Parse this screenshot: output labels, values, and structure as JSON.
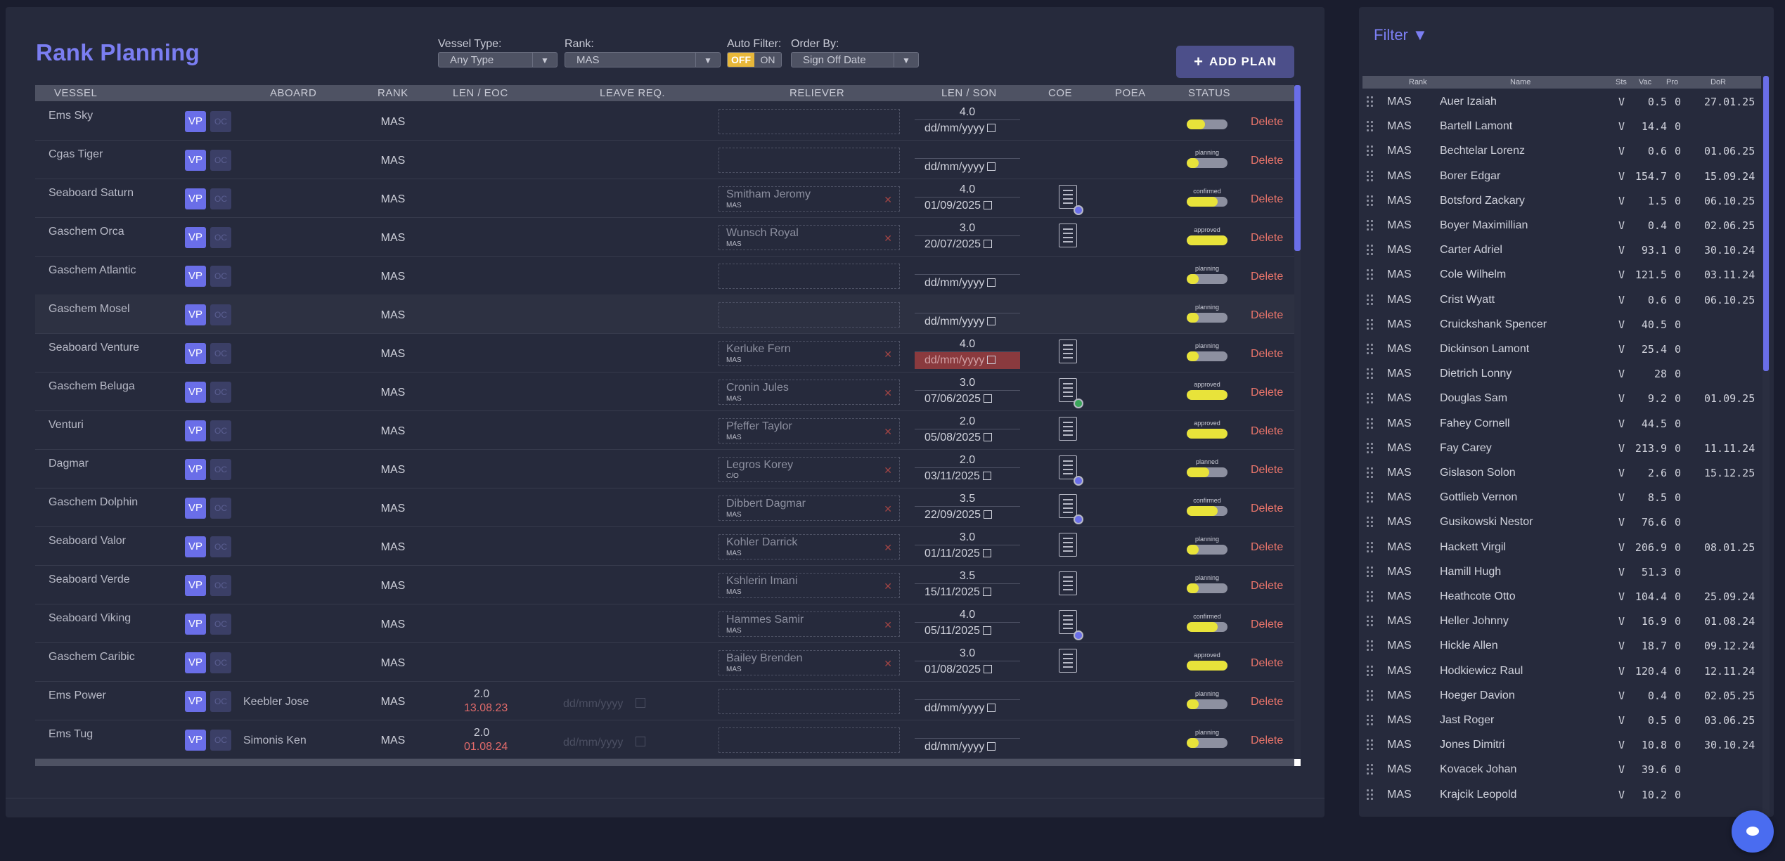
{
  "title": "Rank Planning",
  "filters": {
    "vessel_type_label": "Vessel Type:",
    "vessel_type_value": "Any Type",
    "rank_label": "Rank:",
    "rank_value": "MAS",
    "auto_filter_label": "Auto Filter:",
    "auto_off": "OFF",
    "auto_on": "ON",
    "order_by_label": "Order By:",
    "order_by_value": "Sign Off Date"
  },
  "add_plan": "ADD PLAN",
  "table": {
    "headers": {
      "vessel": "VESSEL",
      "aboard": "ABOARD",
      "rank": "RANK",
      "len_eoc": "LEN / EOC",
      "leave_req": "LEAVE REQ.",
      "reliever": "RELIEVER",
      "len_son": "LEN / SON",
      "coe": "COE",
      "poea": "POEA",
      "status": "STATUS"
    },
    "vp_label": "VP",
    "oc_label": "OC",
    "delete_label": "Delete",
    "date_placeholder": "dd/mm/yyyy",
    "rows": [
      {
        "vessel": "Ems Sky",
        "aboard": "",
        "rank": "MAS",
        "len": "",
        "eoc": "",
        "leave": false,
        "rel_name": "",
        "rel_rank": "",
        "son_len": "4.0",
        "son_date": "dd/mm/yyyy",
        "son_red": false,
        "coe": false,
        "coe_dot": "",
        "status": "",
        "status_fill": 0.45
      },
      {
        "vessel": "Cgas Tiger",
        "aboard": "",
        "rank": "MAS",
        "len": "",
        "eoc": "",
        "leave": false,
        "rel_name": "",
        "rel_rank": "",
        "son_len": "",
        "son_date": "dd/mm/yyyy",
        "son_red": false,
        "coe": false,
        "coe_dot": "",
        "status": "planning",
        "status_fill": 0.3
      },
      {
        "vessel": "Seaboard Saturn",
        "aboard": "",
        "rank": "MAS",
        "len": "",
        "eoc": "",
        "leave": false,
        "rel_name": "Smitham Jeromy",
        "rel_rank": "MAS",
        "son_len": "4.0",
        "son_date": "01/09/2025",
        "son_red": false,
        "coe": true,
        "coe_dot": "#6a6ee8",
        "status": "confirmed",
        "status_fill": 0.75
      },
      {
        "vessel": "Gaschem Orca",
        "aboard": "",
        "rank": "MAS",
        "len": "",
        "eoc": "",
        "leave": false,
        "rel_name": "Wunsch Royal",
        "rel_rank": "MAS",
        "son_len": "3.0",
        "son_date": "20/07/2025",
        "son_red": false,
        "coe": true,
        "coe_dot": "",
        "status": "approved",
        "status_fill": 1.0
      },
      {
        "vessel": "Gaschem Atlantic",
        "aboard": "",
        "rank": "MAS",
        "len": "",
        "eoc": "",
        "leave": false,
        "rel_name": "",
        "rel_rank": "",
        "son_len": "",
        "son_date": "dd/mm/yyyy",
        "son_red": false,
        "coe": false,
        "coe_dot": "",
        "status": "planning",
        "status_fill": 0.3
      },
      {
        "vessel": "Gaschem Mosel",
        "aboard": "",
        "rank": "MAS",
        "len": "",
        "eoc": "",
        "leave": false,
        "rel_name": "",
        "rel_rank": "",
        "son_len": "",
        "son_date": "dd/mm/yyyy",
        "son_red": false,
        "coe": false,
        "coe_dot": "",
        "status": "planning",
        "status_fill": 0.3
      },
      {
        "vessel": "Seaboard Venture",
        "aboard": "",
        "rank": "MAS",
        "len": "",
        "eoc": "",
        "leave": false,
        "rel_name": "Kerluke Fern",
        "rel_rank": "MAS",
        "son_len": "4.0",
        "son_date": "dd/mm/yyyy",
        "son_red": true,
        "coe": true,
        "coe_dot": "",
        "status": "planning",
        "status_fill": 0.3
      },
      {
        "vessel": "Gaschem Beluga",
        "aboard": "",
        "rank": "MAS",
        "len": "",
        "eoc": "",
        "leave": false,
        "rel_name": "Cronin Jules",
        "rel_rank": "MAS",
        "son_len": "3.0",
        "son_date": "07/06/2025",
        "son_red": false,
        "coe": true,
        "coe_dot": "#3aa55a",
        "status": "approved",
        "status_fill": 1.0
      },
      {
        "vessel": "Venturi",
        "aboard": "",
        "rank": "MAS",
        "len": "",
        "eoc": "",
        "leave": false,
        "rel_name": "Pfeffer Taylor",
        "rel_rank": "MAS",
        "son_len": "2.0",
        "son_date": "05/08/2025",
        "son_red": false,
        "coe": true,
        "coe_dot": "",
        "status": "approved",
        "status_fill": 1.0
      },
      {
        "vessel": "Dagmar",
        "aboard": "",
        "rank": "MAS",
        "len": "",
        "eoc": "",
        "leave": false,
        "rel_name": "Legros Korey",
        "rel_rank": "C/O",
        "son_len": "2.0",
        "son_date": "03/11/2025",
        "son_red": false,
        "coe": true,
        "coe_dot": "#6a6ee8",
        "status": "planned",
        "status_fill": 0.55
      },
      {
        "vessel": "Gaschem Dolphin",
        "aboard": "",
        "rank": "MAS",
        "len": "",
        "eoc": "",
        "leave": false,
        "rel_name": "Dibbert Dagmar",
        "rel_rank": "MAS",
        "son_len": "3.5",
        "son_date": "22/09/2025",
        "son_red": false,
        "coe": true,
        "coe_dot": "#6a6ee8",
        "status": "confirmed",
        "status_fill": 0.75
      },
      {
        "vessel": "Seaboard Valor",
        "aboard": "",
        "rank": "MAS",
        "len": "",
        "eoc": "",
        "leave": false,
        "rel_name": "Kohler Darrick",
        "rel_rank": "MAS",
        "son_len": "3.0",
        "son_date": "01/11/2025",
        "son_red": false,
        "coe": true,
        "coe_dot": "",
        "status": "planning",
        "status_fill": 0.3
      },
      {
        "vessel": "Seaboard Verde",
        "aboard": "",
        "rank": "MAS",
        "len": "",
        "eoc": "",
        "leave": false,
        "rel_name": "Kshlerin Imani",
        "rel_rank": "MAS",
        "son_len": "3.5",
        "son_date": "15/11/2025",
        "son_red": false,
        "coe": true,
        "coe_dot": "",
        "status": "planning",
        "status_fill": 0.3
      },
      {
        "vessel": "Seaboard Viking",
        "aboard": "",
        "rank": "MAS",
        "len": "",
        "eoc": "",
        "leave": false,
        "rel_name": "Hammes Samir",
        "rel_rank": "MAS",
        "son_len": "4.0",
        "son_date": "05/11/2025",
        "son_red": false,
        "coe": true,
        "coe_dot": "#6a6ee8",
        "status": "confirmed",
        "status_fill": 0.75
      },
      {
        "vessel": "Gaschem Caribic",
        "aboard": "",
        "rank": "MAS",
        "len": "",
        "eoc": "",
        "leave": false,
        "rel_name": "Bailey Brenden",
        "rel_rank": "MAS",
        "son_len": "3.0",
        "son_date": "01/08/2025",
        "son_red": false,
        "coe": true,
        "coe_dot": "",
        "status": "approved",
        "status_fill": 1.0
      },
      {
        "vessel": "Ems Power",
        "aboard": "Keebler Jose",
        "rank": "MAS",
        "len": "2.0",
        "eoc": "13.08.23",
        "leave": true,
        "rel_name": "",
        "rel_rank": "",
        "son_len": "",
        "son_date": "dd/mm/yyyy",
        "son_red": false,
        "coe": false,
        "coe_dot": "",
        "status": "planning",
        "status_fill": 0.3
      },
      {
        "vessel": "Ems Tug",
        "aboard": "Simonis Ken",
        "rank": "MAS",
        "len": "2.0",
        "eoc": "01.08.24",
        "leave": true,
        "rel_name": "",
        "rel_rank": "",
        "son_len": "",
        "son_date": "dd/mm/yyyy",
        "son_red": false,
        "coe": false,
        "coe_dot": "",
        "status": "planning",
        "status_fill": 0.3
      }
    ]
  },
  "side": {
    "filter_label": "Filter ▼",
    "headers": {
      "rank": "Rank",
      "name": "Name",
      "sts": "Sts",
      "vac": "Vac",
      "pro": "Pro",
      "dor": "DoR"
    },
    "rows": [
      {
        "rank": "MAS",
        "name": "Auer Izaiah",
        "sts": "V",
        "vac": "0.5",
        "pro": "0",
        "dor": "27.01.25"
      },
      {
        "rank": "MAS",
        "name": "Bartell Lamont",
        "sts": "V",
        "vac": "14.4",
        "pro": "0",
        "dor": ""
      },
      {
        "rank": "MAS",
        "name": "Bechtelar Lorenz",
        "sts": "V",
        "vac": "0.6",
        "pro": "0",
        "dor": "01.06.25"
      },
      {
        "rank": "MAS",
        "name": "Borer Edgar",
        "sts": "V",
        "vac": "154.7",
        "pro": "0",
        "dor": "15.09.24"
      },
      {
        "rank": "MAS",
        "name": "Botsford Zackary",
        "sts": "V",
        "vac": "1.5",
        "pro": "0",
        "dor": "06.10.25"
      },
      {
        "rank": "MAS",
        "name": "Boyer Maximillian",
        "sts": "V",
        "vac": "0.4",
        "pro": "0",
        "dor": "02.06.25"
      },
      {
        "rank": "MAS",
        "name": "Carter Adriel",
        "sts": "V",
        "vac": "93.1",
        "pro": "0",
        "dor": "30.10.24"
      },
      {
        "rank": "MAS",
        "name": "Cole Wilhelm",
        "sts": "V",
        "vac": "121.5",
        "pro": "0",
        "dor": "03.11.24"
      },
      {
        "rank": "MAS",
        "name": "Crist Wyatt",
        "sts": "V",
        "vac": "0.6",
        "pro": "0",
        "dor": "06.10.25"
      },
      {
        "rank": "MAS",
        "name": "Cruickshank Spencer",
        "sts": "V",
        "vac": "40.5",
        "pro": "0",
        "dor": ""
      },
      {
        "rank": "MAS",
        "name": "Dickinson Lamont",
        "sts": "V",
        "vac": "25.4",
        "pro": "0",
        "dor": ""
      },
      {
        "rank": "MAS",
        "name": "Dietrich Lonny",
        "sts": "V",
        "vac": "28",
        "pro": "0",
        "dor": ""
      },
      {
        "rank": "MAS",
        "name": "Douglas Sam",
        "sts": "V",
        "vac": "9.2",
        "pro": "0",
        "dor": "01.09.25"
      },
      {
        "rank": "MAS",
        "name": "Fahey Cornell",
        "sts": "V",
        "vac": "44.5",
        "pro": "0",
        "dor": ""
      },
      {
        "rank": "MAS",
        "name": "Fay Carey",
        "sts": "V",
        "vac": "213.9",
        "pro": "0",
        "dor": "11.11.24"
      },
      {
        "rank": "MAS",
        "name": "Gislason Solon",
        "sts": "V",
        "vac": "2.6",
        "pro": "0",
        "dor": "15.12.25"
      },
      {
        "rank": "MAS",
        "name": "Gottlieb Vernon",
        "sts": "V",
        "vac": "8.5",
        "pro": "0",
        "dor": ""
      },
      {
        "rank": "MAS",
        "name": "Gusikowski Nestor",
        "sts": "V",
        "vac": "76.6",
        "pro": "0",
        "dor": ""
      },
      {
        "rank": "MAS",
        "name": "Hackett Virgil",
        "sts": "V",
        "vac": "206.9",
        "pro": "0",
        "dor": "08.01.25"
      },
      {
        "rank": "MAS",
        "name": "Hamill Hugh",
        "sts": "V",
        "vac": "51.3",
        "pro": "0",
        "dor": ""
      },
      {
        "rank": "MAS",
        "name": "Heathcote Otto",
        "sts": "V",
        "vac": "104.4",
        "pro": "0",
        "dor": "25.09.24"
      },
      {
        "rank": "MAS",
        "name": "Heller Johnny",
        "sts": "V",
        "vac": "16.9",
        "pro": "0",
        "dor": "01.08.24"
      },
      {
        "rank": "MAS",
        "name": "Hickle Allen",
        "sts": "V",
        "vac": "18.7",
        "pro": "0",
        "dor": "09.12.24"
      },
      {
        "rank": "MAS",
        "name": "Hodkiewicz Raul",
        "sts": "V",
        "vac": "120.4",
        "pro": "0",
        "dor": "12.11.24"
      },
      {
        "rank": "MAS",
        "name": "Hoeger Davion",
        "sts": "V",
        "vac": "0.4",
        "pro": "0",
        "dor": "02.05.25"
      },
      {
        "rank": "MAS",
        "name": "Jast Roger",
        "sts": "V",
        "vac": "0.5",
        "pro": "0",
        "dor": "03.06.25"
      },
      {
        "rank": "MAS",
        "name": "Jones Dimitri",
        "sts": "V",
        "vac": "10.8",
        "pro": "0",
        "dor": "30.10.24"
      },
      {
        "rank": "MAS",
        "name": "Kovacek Johan",
        "sts": "V",
        "vac": "39.6",
        "pro": "0",
        "dor": ""
      },
      {
        "rank": "MAS",
        "name": "Krajcik Leopold",
        "sts": "V",
        "vac": "10.2",
        "pro": "0",
        "dor": ""
      }
    ]
  },
  "colors": {
    "accent": "#7b7ef2",
    "delete": "#e8746a",
    "status_fill": "#e8e33a",
    "warning_bg": "#8a3a3e"
  }
}
